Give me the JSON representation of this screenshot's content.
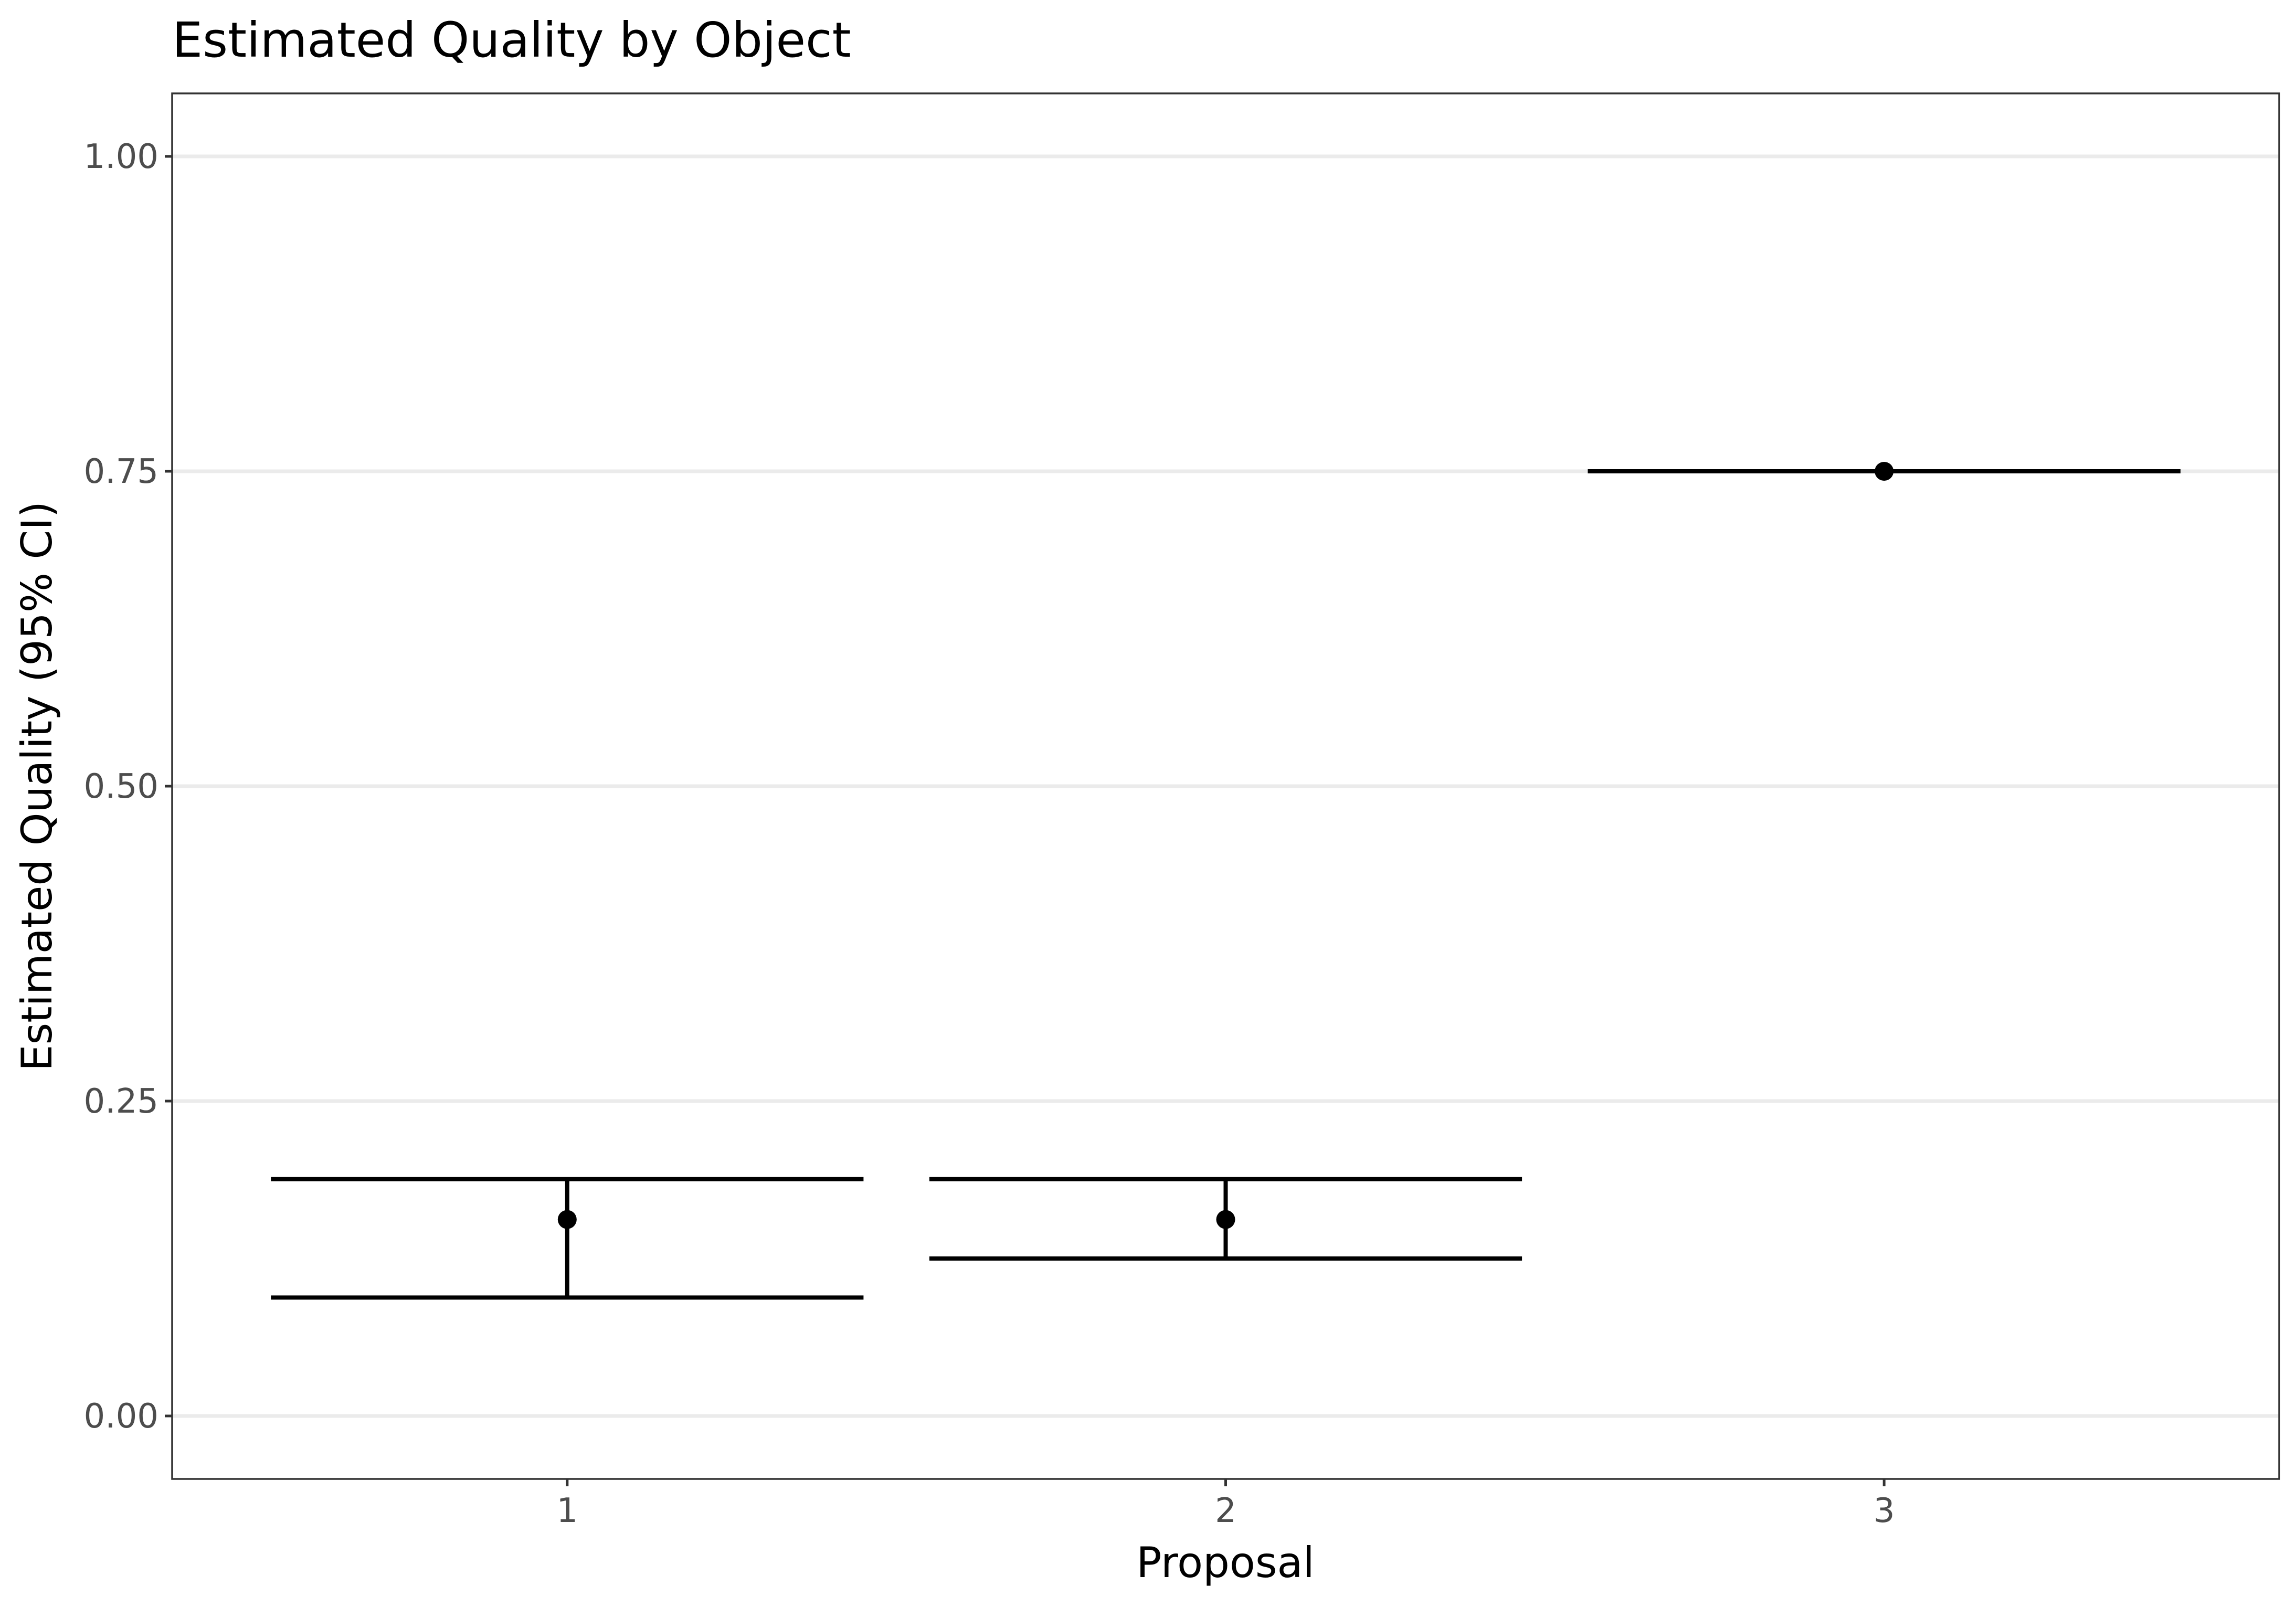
{
  "chart_data": {
    "type": "errorbar",
    "title": "Estimated Quality by Object",
    "xlabel": "Proposal",
    "ylabel": "Estimated Quality (95% CI)",
    "categories": [
      "1",
      "2",
      "3"
    ],
    "ylim": [
      -0.05,
      1.05
    ],
    "yticks": [
      0,
      0.25,
      0.5,
      0.75,
      1
    ],
    "ytick_labels": [
      "0.00",
      "0.25",
      "0.50",
      "0.75",
      "1.00"
    ],
    "grid": true,
    "legend": "none",
    "points": [
      {
        "x": "1",
        "estimate": 0.156,
        "lower": 0.094,
        "upper": 0.188
      },
      {
        "x": "2",
        "estimate": 0.156,
        "lower": 0.125,
        "upper": 0.188
      },
      {
        "x": "3",
        "estimate": 0.75,
        "lower": 0.75,
        "upper": 0.75
      }
    ]
  }
}
